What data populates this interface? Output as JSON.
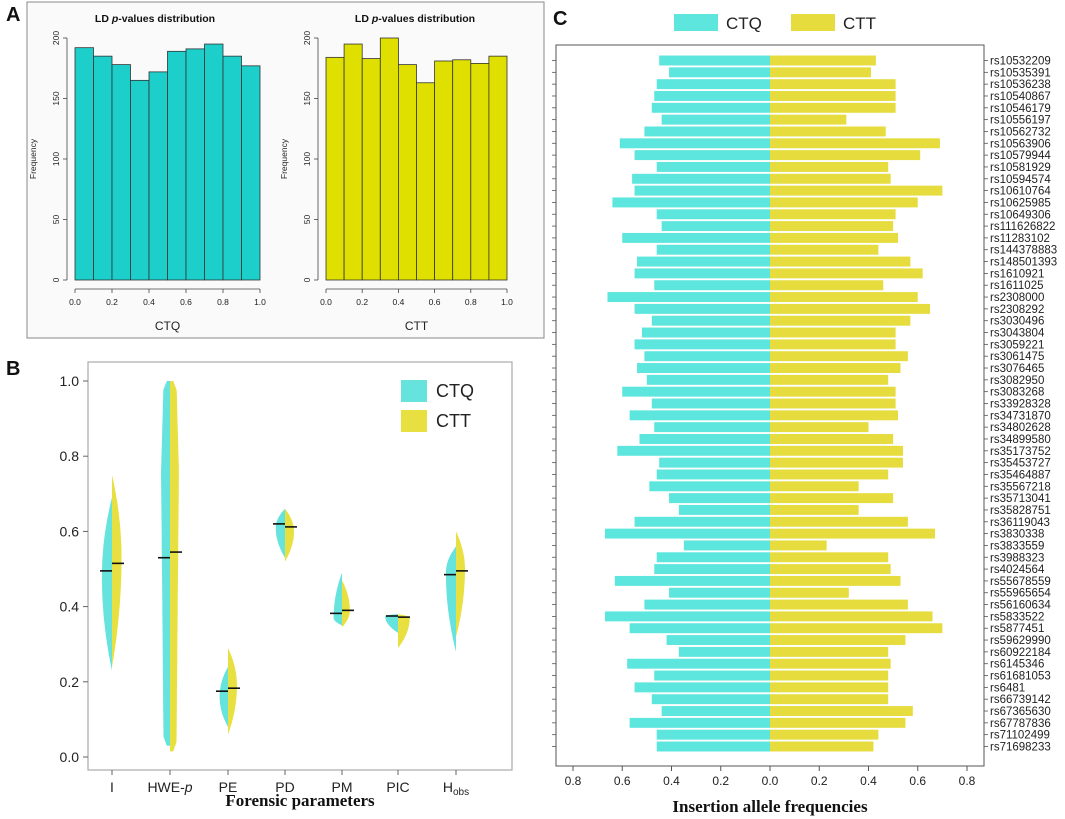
{
  "panel_labels": {
    "a": "A",
    "b": "B",
    "c": "C"
  },
  "colors": {
    "ctq": "#1ccfca",
    "ctt": "#e0e000",
    "ctq_c": "#5ce6de",
    "ctt_c": "#e6dc3e",
    "violin_ctq": "#66e3dd",
    "violin_ctt": "#e8e040"
  },
  "chart_data": [
    {
      "type": "bar",
      "panel": "A-left",
      "title_pre": "LD ",
      "title_em": "p",
      "title_post": "-values distribution",
      "xlabel": "CTQ",
      "ylabel": "Frequency",
      "bin_edges": [
        0.0,
        0.1,
        0.2,
        0.3,
        0.4,
        0.5,
        0.6,
        0.7,
        0.8,
        0.9,
        1.0
      ],
      "values": [
        192,
        185,
        178,
        165,
        172,
        189,
        191,
        195,
        185,
        177
      ],
      "xlim": [
        0,
        1
      ],
      "ylim": [
        0,
        200
      ],
      "xticks": [
        "0.0",
        "0.2",
        "0.4",
        "0.6",
        "0.8",
        "1.0"
      ],
      "yticks": [
        "0",
        "50",
        "100",
        "150",
        "200"
      ]
    },
    {
      "type": "bar",
      "panel": "A-right",
      "title_pre": "LD ",
      "title_em": "p",
      "title_post": "-values distribution",
      "xlabel": "CTT",
      "ylabel": "Frequency",
      "bin_edges": [
        0.0,
        0.1,
        0.2,
        0.3,
        0.4,
        0.5,
        0.6,
        0.7,
        0.8,
        0.9,
        1.0
      ],
      "values": [
        184,
        195,
        183,
        200,
        178,
        163,
        181,
        182,
        179,
        185
      ],
      "xlim": [
        0,
        1
      ],
      "ylim": [
        0,
        200
      ],
      "xticks": [
        "0.0",
        "0.2",
        "0.4",
        "0.6",
        "0.8",
        "1.0"
      ],
      "yticks": [
        "0",
        "50",
        "100",
        "150",
        "200"
      ]
    },
    {
      "type": "violin",
      "panel": "B",
      "xlabel": "Forensic parameters",
      "categories": [
        "I",
        "HWE-p",
        "PE",
        "PD",
        "PM",
        "PIC",
        "Hobs"
      ],
      "category_labels": [
        {
          "main": "I",
          "sub": ""
        },
        {
          "main": "HWE-",
          "sub": "",
          "em": "p"
        },
        {
          "main": "PE",
          "sub": ""
        },
        {
          "main": "PD",
          "sub": ""
        },
        {
          "main": "PM",
          "sub": ""
        },
        {
          "main": "PIC",
          "sub": ""
        },
        {
          "main": "H",
          "sub": "obs"
        }
      ],
      "ylim": [
        0,
        1
      ],
      "yticks": [
        "0.0",
        "0.2",
        "0.4",
        "0.6",
        "0.8",
        "1.0"
      ],
      "legend": [
        "CTQ",
        "CTT"
      ],
      "series": [
        {
          "name": "CTQ",
          "min": [
            0.23,
            0.03,
            0.08,
            0.53,
            0.35,
            0.33,
            0.28
          ],
          "max": [
            0.69,
            1.0,
            0.24,
            0.66,
            0.49,
            0.38,
            0.56
          ],
          "median": [
            0.495,
            0.53,
            0.175,
            0.62,
            0.382,
            0.375,
            0.485
          ],
          "peak": [
            0.48,
            0.76,
            0.16,
            0.61,
            0.37,
            0.375,
            0.49
          ],
          "maxw": [
            0.36,
            0.32,
            0.3,
            0.33,
            0.3,
            0.46,
            0.36
          ]
        },
        {
          "name": "CTT",
          "min": [
            0.24,
            0.015,
            0.06,
            0.52,
            0.345,
            0.29,
            0.32
          ],
          "max": [
            0.75,
            1.0,
            0.29,
            0.66,
            0.47,
            0.38,
            0.6
          ],
          "median": [
            0.515,
            0.545,
            0.183,
            0.612,
            0.39,
            0.372,
            0.495
          ],
          "peak": [
            0.53,
            0.76,
            0.19,
            0.6,
            0.39,
            0.37,
            0.5
          ],
          "maxw": [
            0.34,
            0.32,
            0.32,
            0.32,
            0.28,
            0.42,
            0.32
          ]
        }
      ]
    },
    {
      "type": "butterfly-bar",
      "panel": "C",
      "xlabel": "Insertion allele frequencies",
      "legend": [
        "CTQ",
        "CTT"
      ],
      "xlim": [
        -0.8,
        0.8
      ],
      "xticks": [
        "0.8",
        "0.6",
        "0.4",
        "0.2",
        "0.0",
        "0.2",
        "0.4",
        "0.6",
        "0.8"
      ],
      "categories": [
        "rs10532209",
        "rs10535391",
        "rs10536238",
        "rs10540867",
        "rs10546179",
        "rs10556197",
        "rs10562732",
        "rs10563906",
        "rs10579944",
        "rs10581929",
        "rs10594574",
        "rs10610764",
        "rs10625985",
        "rs10649306",
        "rs111626822",
        "rs11283102",
        "rs144378883",
        "rs148501393",
        "rs1610921",
        "rs1611025",
        "rs2308000",
        "rs2308292",
        "rs3030496",
        "rs3043804",
        "rs3059221",
        "rs3061475",
        "rs3076465",
        "rs3082950",
        "rs3083268",
        "rs33928328",
        "rs34731870",
        "rs34802628",
        "rs34899580",
        "rs35173752",
        "rs35453727",
        "rs35464887",
        "rs35567218",
        "rs35713041",
        "rs35828751",
        "rs36119043",
        "rs3830338",
        "rs3833559",
        "rs3988323",
        "rs4024564",
        "rs55678559",
        "rs55965654",
        "rs56160634",
        "rs5833522",
        "rs5877451",
        "rs59629990",
        "rs60922184",
        "rs6145346",
        "rs61681053",
        "rs6481",
        "rs66739142",
        "rs67365630",
        "rs67787836",
        "rs71102499",
        "rs71698233"
      ],
      "series": [
        {
          "name": "CTQ",
          "values": [
            0.45,
            0.41,
            0.46,
            0.47,
            0.48,
            0.44,
            0.51,
            0.61,
            0.55,
            0.46,
            0.56,
            0.55,
            0.64,
            0.46,
            0.44,
            0.6,
            0.46,
            0.54,
            0.55,
            0.47,
            0.66,
            0.55,
            0.48,
            0.52,
            0.55,
            0.51,
            0.54,
            0.5,
            0.6,
            0.48,
            0.57,
            0.47,
            0.53,
            0.62,
            0.45,
            0.46,
            0.49,
            0.41,
            0.37,
            0.55,
            0.67,
            0.35,
            0.46,
            0.47,
            0.63,
            0.41,
            0.51,
            0.67,
            0.57,
            0.42,
            0.37,
            0.58,
            0.47,
            0.55,
            0.48,
            0.44,
            0.57,
            0.46,
            0.46
          ]
        },
        {
          "name": "CTT",
          "values": [
            0.43,
            0.41,
            0.51,
            0.51,
            0.51,
            0.31,
            0.47,
            0.69,
            0.61,
            0.48,
            0.49,
            0.7,
            0.6,
            0.51,
            0.5,
            0.52,
            0.44,
            0.57,
            0.62,
            0.46,
            0.6,
            0.65,
            0.57,
            0.51,
            0.51,
            0.56,
            0.53,
            0.48,
            0.51,
            0.51,
            0.52,
            0.4,
            0.5,
            0.54,
            0.54,
            0.48,
            0.36,
            0.5,
            0.36,
            0.56,
            0.67,
            0.23,
            0.48,
            0.49,
            0.53,
            0.32,
            0.56,
            0.66,
            0.7,
            0.55,
            0.48,
            0.49,
            0.48,
            0.48,
            0.48,
            0.58,
            0.55,
            0.44,
            0.42
          ]
        }
      ]
    }
  ]
}
